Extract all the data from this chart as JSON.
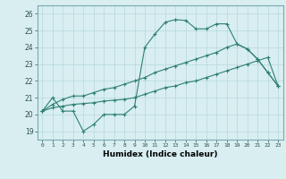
{
  "xlabel": "Humidex (Indice chaleur)",
  "background_color": "#d8eef0",
  "grid_color": "#b8d8dc",
  "line_color": "#2e7f72",
  "spine_color": "#7aaab0",
  "xlim": [
    -0.5,
    23.5
  ],
  "ylim": [
    18.5,
    26.5
  ],
  "yticks": [
    19,
    20,
    21,
    22,
    23,
    24,
    25,
    26
  ],
  "xticks": [
    0,
    1,
    2,
    3,
    4,
    5,
    6,
    7,
    8,
    9,
    10,
    11,
    12,
    13,
    14,
    15,
    16,
    17,
    18,
    19,
    20,
    21,
    22,
    23
  ],
  "series1_x": [
    0,
    1,
    2,
    3,
    4,
    5,
    6,
    7,
    8,
    9,
    10,
    11,
    12,
    13,
    14,
    15,
    16,
    17,
    18,
    19,
    20,
    21,
    22,
    23
  ],
  "series1_y": [
    20.2,
    21.0,
    20.2,
    20.2,
    19.0,
    19.4,
    20.0,
    20.0,
    20.0,
    20.5,
    24.0,
    24.8,
    25.5,
    25.65,
    25.6,
    25.1,
    25.1,
    25.4,
    25.4,
    24.2,
    23.9,
    23.3,
    22.5,
    21.7
  ],
  "series2_x": [
    0,
    1,
    2,
    3,
    4,
    5,
    6,
    7,
    8,
    9,
    10,
    11,
    12,
    13,
    14,
    15,
    16,
    17,
    18,
    19,
    20,
    21,
    22,
    23
  ],
  "series2_y": [
    20.2,
    20.6,
    20.9,
    21.1,
    21.1,
    21.3,
    21.5,
    21.6,
    21.8,
    22.0,
    22.2,
    22.5,
    22.7,
    22.9,
    23.1,
    23.3,
    23.5,
    23.7,
    24.0,
    24.2,
    23.9,
    23.3,
    22.5,
    21.7
  ],
  "series3_x": [
    0,
    1,
    2,
    3,
    4,
    5,
    6,
    7,
    8,
    9,
    10,
    11,
    12,
    13,
    14,
    15,
    16,
    17,
    18,
    19,
    20,
    21,
    22,
    23
  ],
  "series3_y": [
    20.2,
    20.4,
    20.5,
    20.6,
    20.65,
    20.7,
    20.8,
    20.85,
    20.9,
    21.0,
    21.2,
    21.4,
    21.6,
    21.7,
    21.9,
    22.0,
    22.2,
    22.4,
    22.6,
    22.8,
    23.0,
    23.2,
    23.4,
    21.7
  ]
}
